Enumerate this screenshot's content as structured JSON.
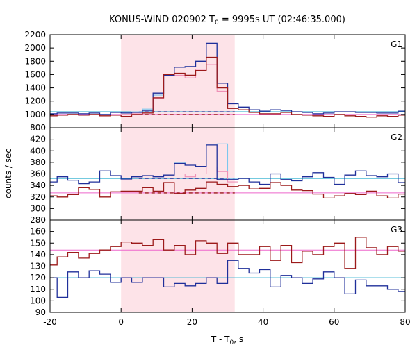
{
  "chart_data": {
    "type": "line",
    "title": "KONUS-WIND 020902 T",
    "title_sub": "0",
    "title_rest": " = 9995s UT (02:46:35.000)",
    "xlabel": "T - T",
    "xlabel_sub": "0",
    "xlabel_rest": ", s",
    "ylabel": "counts / sec",
    "xlim": [
      -20,
      80
    ],
    "x_ticks": [
      -20,
      0,
      20,
      40,
      60,
      80
    ],
    "highlight_interval": [
      0,
      32
    ],
    "colors": {
      "blue": "#1f2f9a",
      "red": "#9c1a1a",
      "light_blue": "#7cc7ee",
      "pink": "#ee90b6",
      "background_levels": [
        "#22aacc",
        "#ee66cc"
      ],
      "highlight": "#fde3e8"
    },
    "panels": [
      {
        "name": "G1",
        "ylim": [
          800,
          2200
        ],
        "y_ticks": [
          800,
          1000,
          1200,
          1400,
          1600,
          1800,
          2000,
          2200
        ],
        "background_level": [
          1040,
          1000
        ],
        "bin_width": 3,
        "x_start": -21,
        "series": [
          {
            "color": "blue",
            "values": [
              1010,
              1020,
              1020,
              1010,
              1020,
              1000,
              1030,
              1020,
              1030,
              1060,
              1320,
              1590,
              1710,
              1720,
              1800,
              2070,
              1470,
              1160,
              1110,
              1070,
              1050,
              1070,
              1060,
              1040,
              1030,
              1010,
              1020,
              1040,
              1040,
              1030,
              1030,
              1020,
              1020,
              1050
            ]
          },
          {
            "color": "red",
            "values": [
              980,
              990,
              1000,
              990,
              1000,
              980,
              990,
              970,
              1000,
              1020,
              1250,
              1600,
              1620,
              1590,
              1660,
              1860,
              1400,
              1090,
              1070,
              1030,
              1010,
              1010,
              1030,
              1000,
              990,
              980,
              970,
              1000,
              980,
              970,
              960,
              980,
              970,
              990
            ]
          },
          {
            "color": "light_blue",
            "values": [
              null,
              null,
              null,
              null,
              null,
              null,
              null,
              1030,
              1040,
              1080,
              1290,
              1600,
              1710,
              1720,
              1800,
              2070,
              1470,
              1160
            ]
          },
          {
            "color": "pink",
            "values": [
              null,
              null,
              null,
              null,
              null,
              null,
              null,
              1000,
              1010,
              1030,
              1240,
              1580,
              1590,
              1550,
              1680,
              1750,
              1350,
              1090
            ]
          }
        ]
      },
      {
        "name": "G2",
        "ylim": [
          280,
          440
        ],
        "y_ticks": [
          280,
          300,
          320,
          340,
          360,
          380,
          400,
          420
        ],
        "background_level": [
          352,
          327
        ],
        "bin_width": 3,
        "x_start": -21,
        "series": [
          {
            "color": "blue",
            "values": [
              346,
              355,
              349,
              343,
              346,
              365,
              357,
              351,
              355,
              357,
              355,
              358,
              378,
              375,
              373,
              410,
              350,
              350,
              352,
              346,
              342,
              360,
              350,
              348,
              355,
              362,
              354,
              342,
              358,
              365,
              357,
              355,
              360,
              345,
              355
            ]
          },
          {
            "color": "red",
            "values": [
              322,
              320,
              324,
              336,
              333,
              320,
              329,
              330,
              330,
              336,
              330,
              345,
              326,
              332,
              335,
              346,
              342,
              338,
              340,
              334,
              335,
              345,
              340,
              332,
              331,
              325,
              318,
              322,
              326,
              324,
              330,
              322,
              318,
              325,
              323
            ]
          },
          {
            "color": "light_blue",
            "values": [
              null,
              null,
              null,
              null,
              null,
              null,
              null,
              null,
              null,
              null,
              null,
              null,
              380,
              375,
              373,
              410,
              412,
              352
            ]
          },
          {
            "color": "pink",
            "values": [
              null,
              null,
              null,
              null,
              null,
              null,
              null,
              null,
              null,
              null,
              null,
              null,
              360,
              355,
              360,
              372,
              364,
              346
            ]
          }
        ]
      },
      {
        "name": "G3",
        "ylim": [
          90,
          170
        ],
        "y_ticks": [
          90,
          100,
          110,
          120,
          130,
          140,
          150,
          160
        ],
        "background_level": [
          120,
          144
        ],
        "bin_width": 3,
        "x_start": -21,
        "series": [
          {
            "color": "blue",
            "values": [
              120,
              103,
              125,
              120,
              126,
              123,
              116,
              120,
              116,
              120,
              120,
              112,
              115,
              113,
              115,
              120,
              115,
              135,
              128,
              124,
              127,
              112,
              122,
              120,
              115,
              119,
              125,
              120,
              106,
              118,
              113,
              113,
              110,
              108,
              130
            ]
          },
          {
            "color": "red",
            "values": [
              131,
              138,
              142,
              137,
              141,
              144,
              147,
              151,
              150,
              148,
              153,
              144,
              148,
              140,
              152,
              150,
              141,
              150,
              140,
              140,
              147,
              135,
              148,
              133,
              143,
              140,
              147,
              150,
              128,
              155,
              146,
              140,
              147,
              143,
              155
            ]
          }
        ]
      }
    ]
  }
}
